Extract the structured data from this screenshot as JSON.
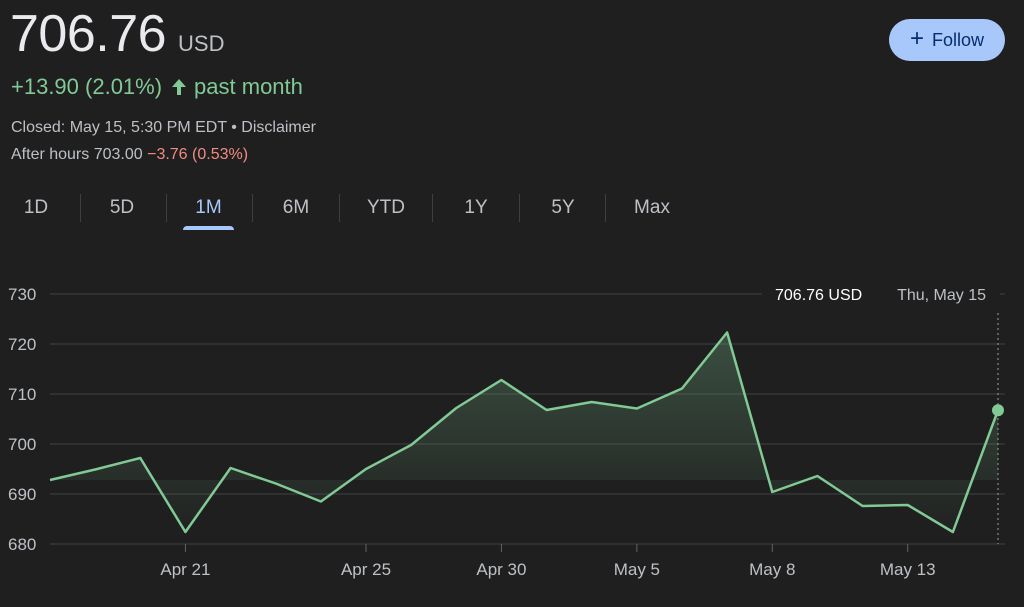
{
  "quote": {
    "price": "706.76",
    "currency": "USD",
    "change": "+13.90 (2.01%)",
    "change_period": "past month",
    "closed": "Closed: May 15, 5:30 PM EDT",
    "bullet": " • ",
    "disclaimer": "Disclaimer",
    "after_hours_label": "After hours 703.00",
    "after_hours_change": "−3.76 (0.53%)",
    "direction_icon": "arrow-up-icon",
    "colors": {
      "up": "#81c995",
      "down": "#f28b82",
      "accent": "#a8c7fa"
    }
  },
  "follow": {
    "icon": "plus-icon",
    "label": "Follow"
  },
  "ranges": {
    "items": [
      "1D",
      "5D",
      "1M",
      "6M",
      "YTD",
      "1Y",
      "5Y",
      "Max"
    ],
    "selected": "1M"
  },
  "tooltip": {
    "price": "706.76 USD",
    "date": "Thu, May 15"
  },
  "chart_data": {
    "type": "area",
    "x": [
      "Apr 15",
      "Apr 16",
      "Apr 17",
      "Apr 21",
      "Apr 22",
      "Apr 23",
      "Apr 24",
      "Apr 25",
      "Apr 28",
      "Apr 29",
      "Apr 30",
      "May 1",
      "May 2",
      "May 5",
      "May 6",
      "May 7",
      "May 8",
      "May 9",
      "May 12",
      "May 13",
      "May 14",
      "May 15"
    ],
    "series": [
      {
        "values": [
          692.8,
          694.9,
          697.2,
          682.4,
          695.2,
          692.1,
          688.5,
          695.0,
          699.8,
          707.2,
          712.8,
          706.8,
          708.4,
          707.1,
          711.1,
          722.3,
          690.4,
          693.6,
          687.6,
          687.8,
          682.4,
          706.76
        ]
      }
    ],
    "xticks": [
      "Apr 21",
      "Apr 25",
      "Apr 30",
      "May 5",
      "May 8",
      "May 13"
    ],
    "yticks": [
      680,
      690,
      700,
      710,
      720,
      730
    ],
    "ylim": [
      680,
      730
    ],
    "grid": true,
    "line_color": "#81c995"
  }
}
